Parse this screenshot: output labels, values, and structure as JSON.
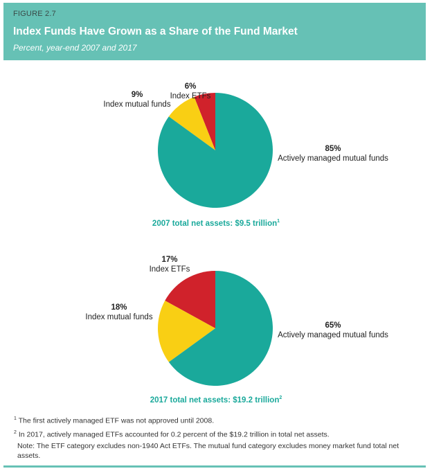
{
  "header": {
    "figure_label": "FIGURE 2.7",
    "title": "Index Funds Have Grown as a Share of the Fund Market",
    "subtitle": "Percent, year-end 2007 and 2017"
  },
  "colors": {
    "header_bg": "#66c1b5",
    "actively_managed": "#1aa99b",
    "index_mutual_funds": "#f9cf14",
    "index_etfs": "#d0222b",
    "total_text": "#1aa99b"
  },
  "chart_data": [
    {
      "type": "pie",
      "title": "2007",
      "slices": [
        {
          "label": "Index ETFs",
          "value": 6,
          "pct_label": "6%"
        },
        {
          "label": "Index mutual funds",
          "value": 9,
          "pct_label": "9%"
        },
        {
          "label": "Actively managed mutual funds",
          "value": 85,
          "pct_label": "85%"
        }
      ],
      "start": "12 o'clock, counter-clockwise",
      "total_label": "2007 total net assets: $9.5 trillion",
      "total_footnote": "1"
    },
    {
      "type": "pie",
      "title": "2017",
      "slices": [
        {
          "label": "Index ETFs",
          "value": 17,
          "pct_label": "17%"
        },
        {
          "label": "Index mutual funds",
          "value": 18,
          "pct_label": "18%"
        },
        {
          "label": "Actively managed mutual funds",
          "value": 65,
          "pct_label": "65%"
        }
      ],
      "start": "12 o'clock, counter-clockwise",
      "total_label": "2017 total net assets: $19.2 trillion",
      "total_footnote": "2"
    }
  ],
  "notes": {
    "fn1_mark": "1",
    "fn1": "The first actively managed ETF was not approved until 2008.",
    "fn2_mark": "2",
    "fn2": "In 2017, actively managed ETFs accounted for 0.2 percent of the $19.2 trillion in total net assets.",
    "note": "Note: The ETF category excludes non-1940 Act ETFs. The mutual fund category excludes money market fund total net assets."
  }
}
